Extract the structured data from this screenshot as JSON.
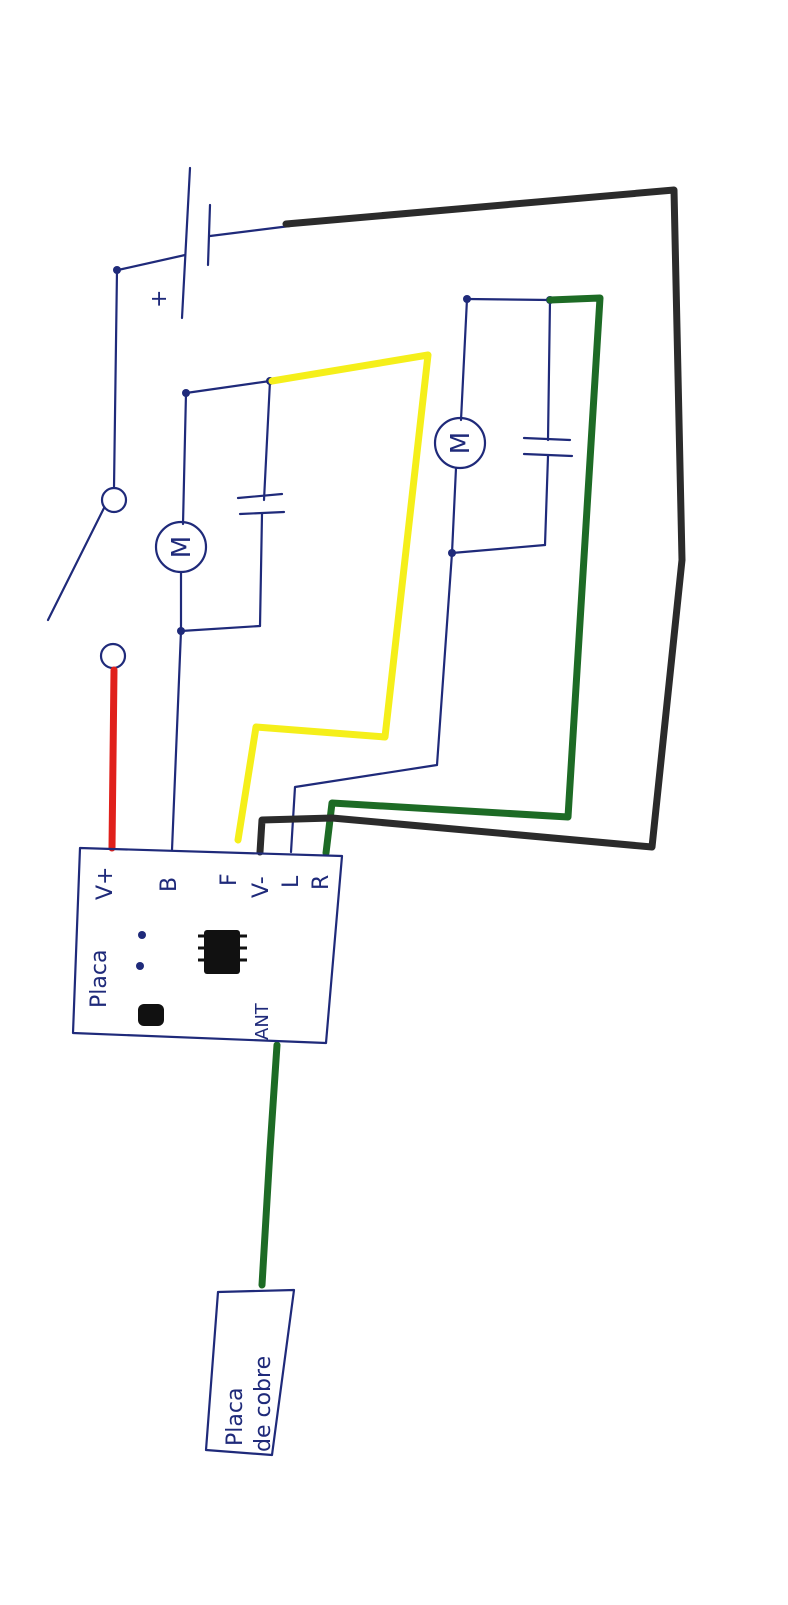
{
  "colors": {
    "ink": "#1f2a7a",
    "wire_red": "#e0201b",
    "wire_yellow": "#f5ef1a",
    "wire_green": "#1d6b25",
    "wire_black": "#2b2b2b",
    "chip": "#111111"
  },
  "battery": {
    "plus_label": "+"
  },
  "motor_left": {
    "symbol": "M"
  },
  "motor_right": {
    "symbol": "M"
  },
  "board": {
    "name": "Placa",
    "pins": {
      "vplus": "V+",
      "b": "B",
      "f": "F",
      "vminus": "V-",
      "l": "L",
      "r": "R",
      "ant": "ANT"
    }
  },
  "copper_plate": {
    "line1": "Placa",
    "line2": "de cobre"
  }
}
